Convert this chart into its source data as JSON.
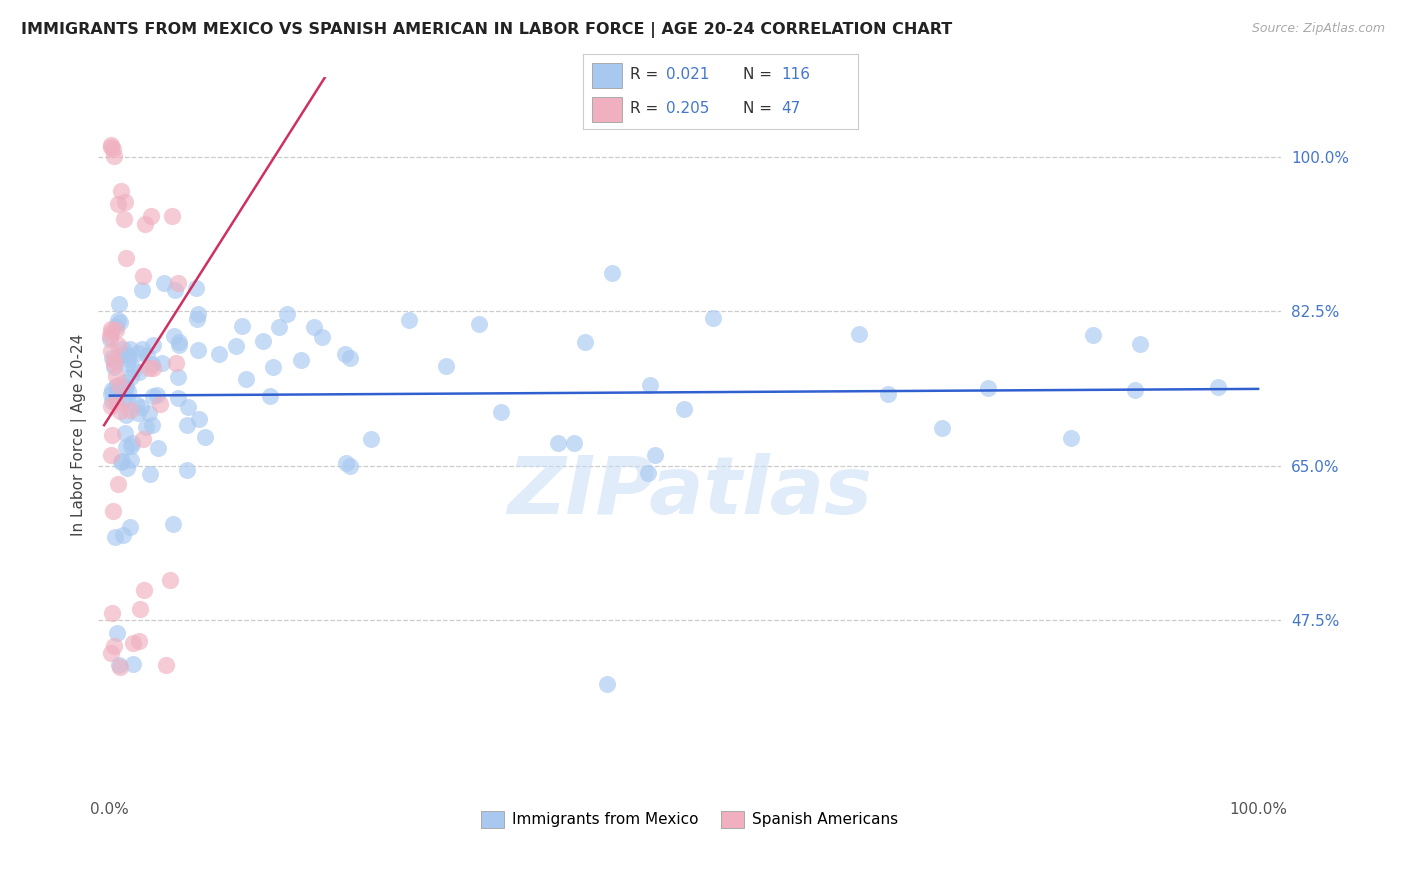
{
  "title": "IMMIGRANTS FROM MEXICO VS SPANISH AMERICAN IN LABOR FORCE | AGE 20-24 CORRELATION CHART",
  "source": "Source: ZipAtlas.com",
  "ylabel": "In Labor Force | Age 20-24",
  "y_tick_labels": [
    "47.5%",
    "65.0%",
    "82.5%",
    "100.0%"
  ],
  "y_tick_values": [
    0.475,
    0.65,
    0.825,
    1.0
  ],
  "xlim": [
    -0.01,
    1.02
  ],
  "ylim": [
    0.28,
    1.09
  ],
  "background_color": "#ffffff",
  "grid_color": "#cccccc",
  "watermark": "ZIPatlas",
  "legend_R1": "0.021",
  "legend_N1": "116",
  "legend_R2": "0.205",
  "legend_N2": "47",
  "blue_color": "#a8c8f0",
  "pink_color": "#f0b0c0",
  "line_blue": "#3060d0",
  "line_pink": "#d03060",
  "tick_color": "#4477cc"
}
